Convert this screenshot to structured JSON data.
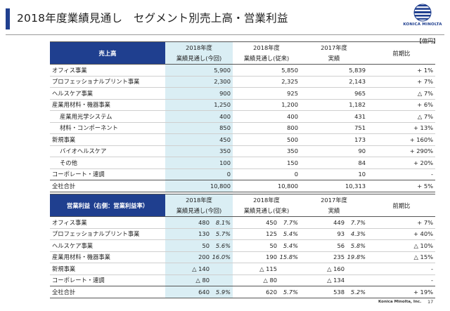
{
  "title": "2018年度業績見通し　セグメント別売上高・営業利益",
  "logo_text": "KONICA MINOLTA",
  "unit": "【億円】",
  "headers": {
    "col1_year": "2018年度",
    "col1_sub": "業績見通し(今回)",
    "col2_year": "2018年度",
    "col2_sub": "業績見通し(従来)",
    "col3_year": "2017年度",
    "col3_sub": "実績",
    "col4": "前期比"
  },
  "sales": {
    "label": "売上高",
    "rows": [
      {
        "name": "オフィス事業",
        "indent": false,
        "c1": "5,900",
        "c2": "5,850",
        "c3": "5,839",
        "c4": "+ 1%"
      },
      {
        "name": "プロフェッショナルプリント事業",
        "indent": false,
        "c1": "2,300",
        "c2": "2,325",
        "c3": "2,143",
        "c4": "+ 7%"
      },
      {
        "name": "ヘルスケア事業",
        "indent": false,
        "c1": "900",
        "c2": "925",
        "c3": "965",
        "c4": "△ 7%"
      },
      {
        "name": "産業用材料・機器事業",
        "indent": false,
        "c1": "1,250",
        "c2": "1,200",
        "c3": "1,182",
        "c4": "+ 6%"
      },
      {
        "name": "産業用光学システム",
        "indent": true,
        "c1": "400",
        "c2": "400",
        "c3": "431",
        "c4": "△ 7%"
      },
      {
        "name": "材料・コンポーネント",
        "indent": true,
        "c1": "850",
        "c2": "800",
        "c3": "751",
        "c4": "+ 13%"
      },
      {
        "name": "新規事業",
        "indent": false,
        "c1": "450",
        "c2": "500",
        "c3": "173",
        "c4": "+ 160%"
      },
      {
        "name": "バイオヘルスケア",
        "indent": true,
        "c1": "350",
        "c2": "350",
        "c3": "90",
        "c4": "+ 290%"
      },
      {
        "name": "その他",
        "indent": true,
        "c1": "100",
        "c2": "150",
        "c3": "84",
        "c4": "+ 20%"
      },
      {
        "name": "コーポレート・連調",
        "indent": false,
        "c1": "0",
        "c2": "0",
        "c3": "10",
        "c4": "-"
      }
    ],
    "total": {
      "name": "全社合計",
      "c1": "10,800",
      "c2": "10,800",
      "c3": "10,313",
      "c4": "+ 5%"
    }
  },
  "profit": {
    "label": "営業利益（右側：営業利益率）",
    "rows": [
      {
        "name": "オフィス事業",
        "c1": "480",
        "p1": "8.1%",
        "c2": "450",
        "p2": "7.7%",
        "c3": "449",
        "p3": "7.7%",
        "c4": "+ 7%"
      },
      {
        "name": "プロフェッショナルプリント事業",
        "c1": "130",
        "p1": "5.7%",
        "c2": "125",
        "p2": "5.4%",
        "c3": "93",
        "p3": "4.3%",
        "c4": "+ 40%"
      },
      {
        "name": "ヘルスケア事業",
        "c1": "50",
        "p1": "5.6%",
        "c2": "50",
        "p2": "5.4%",
        "c3": "56",
        "p3": "5.8%",
        "c4": "△ 10%"
      },
      {
        "name": "産業用材料・機器事業",
        "c1": "200",
        "p1": "16.0%",
        "c2": "190",
        "p2": "15.8%",
        "c3": "235",
        "p3": "19.8%",
        "c4": "△ 15%"
      },
      {
        "name": "新規事業",
        "c1": "△ 140",
        "p1": "",
        "c2": "△ 115",
        "p2": "",
        "c3": "△ 160",
        "p3": "",
        "c4": "-"
      },
      {
        "name": "コーポレート・連調",
        "c1": "△ 80",
        "p1": "",
        "c2": "△ 80",
        "p2": "",
        "c3": "△ 134",
        "p3": "",
        "c4": "-"
      }
    ],
    "total": {
      "name": "全社合計",
      "c1": "640",
      "p1": "5.9%",
      "c2": "620",
      "p2": "5.7%",
      "c3": "538",
      "p3": "5.2%",
      "c4": "+ 19%"
    }
  },
  "footer_brand": "Konica Minolta, Inc.",
  "page_number": "17"
}
